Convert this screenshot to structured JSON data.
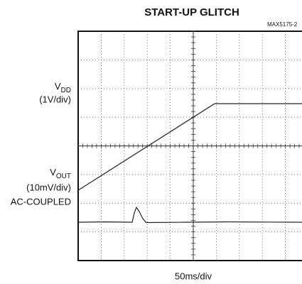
{
  "header": {
    "title": "START-UP GLITCH",
    "figure_id": "MAX5175-2"
  },
  "labels": {
    "vdd": {
      "symbol": "V",
      "subscript": "DD",
      "scale": "(1V/div)"
    },
    "vout": {
      "symbol": "V",
      "subscript": "OUT",
      "scale": "(10mV/div)",
      "coupling": "AC-COUPLED"
    }
  },
  "footer": {
    "timebase": "50ms/div"
  }
}
